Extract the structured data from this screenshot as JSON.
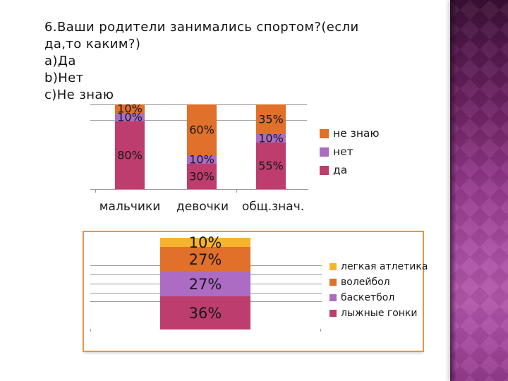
{
  "slide": {
    "question_lines": [
      "6.Ваши родители занимались спортом?(если",
      "да,то каким?)",
      "a)Да",
      "b)Нет",
      "c)Не знаю"
    ]
  },
  "colors": {
    "da": "#BC3D6E",
    "net": "#AC6CC4",
    "ne_znayu": "#E0702A",
    "legkaya_atletika": "#F6B42C",
    "panel_border": "#E6954A",
    "grid": "#9A9A9A",
    "text": "#1B1B1B"
  },
  "chart_data": [
    {
      "type": "bar",
      "subtype": "stacked-percent-column",
      "title": "",
      "categories": [
        "мальчики",
        "девочки",
        "общ.знач."
      ],
      "series": [
        {
          "name": "да",
          "color": "#BC3D6E",
          "values": [
            80,
            30,
            55
          ]
        },
        {
          "name": "нет",
          "color": "#AC6CC4",
          "values": [
            10,
            10,
            10
          ]
        },
        {
          "name": "не знаю",
          "color": "#E0702A",
          "values": [
            10,
            60,
            35
          ]
        }
      ],
      "data_labels": "percent",
      "label_suffix": "%",
      "ylim": [
        0,
        100
      ],
      "grid": true,
      "legend_position": "right",
      "legend": [
        {
          "label": "не знаю",
          "color": "#E0702A"
        },
        {
          "label": "нет",
          "color": "#AC6CC4"
        },
        {
          "label": "да",
          "color": "#BC3D6E"
        }
      ]
    },
    {
      "type": "bar",
      "subtype": "stacked-percent-column",
      "title": "",
      "categories": [
        ""
      ],
      "series": [
        {
          "name": "лыжные гонки",
          "color": "#BC3D6E",
          "values": [
            36
          ]
        },
        {
          "name": "баскетбол",
          "color": "#AC6CC4",
          "values": [
            27
          ]
        },
        {
          "name": "волейбол",
          "color": "#E0702A",
          "values": [
            27
          ]
        },
        {
          "name": "легкая атлетика",
          "color": "#F6B42C",
          "values": [
            10
          ]
        }
      ],
      "data_labels": "percent",
      "label_suffix": "%",
      "ylim": [
        0,
        100
      ],
      "grid": true,
      "legend_position": "right",
      "legend": [
        {
          "label": "легкая атлетика",
          "color": "#F6B42C"
        },
        {
          "label": "волейбол",
          "color": "#E0702A"
        },
        {
          "label": "баскетбол",
          "color": "#AC6CC4"
        },
        {
          "label": "лыжные гонки",
          "color": "#BC3D6E"
        }
      ]
    }
  ]
}
